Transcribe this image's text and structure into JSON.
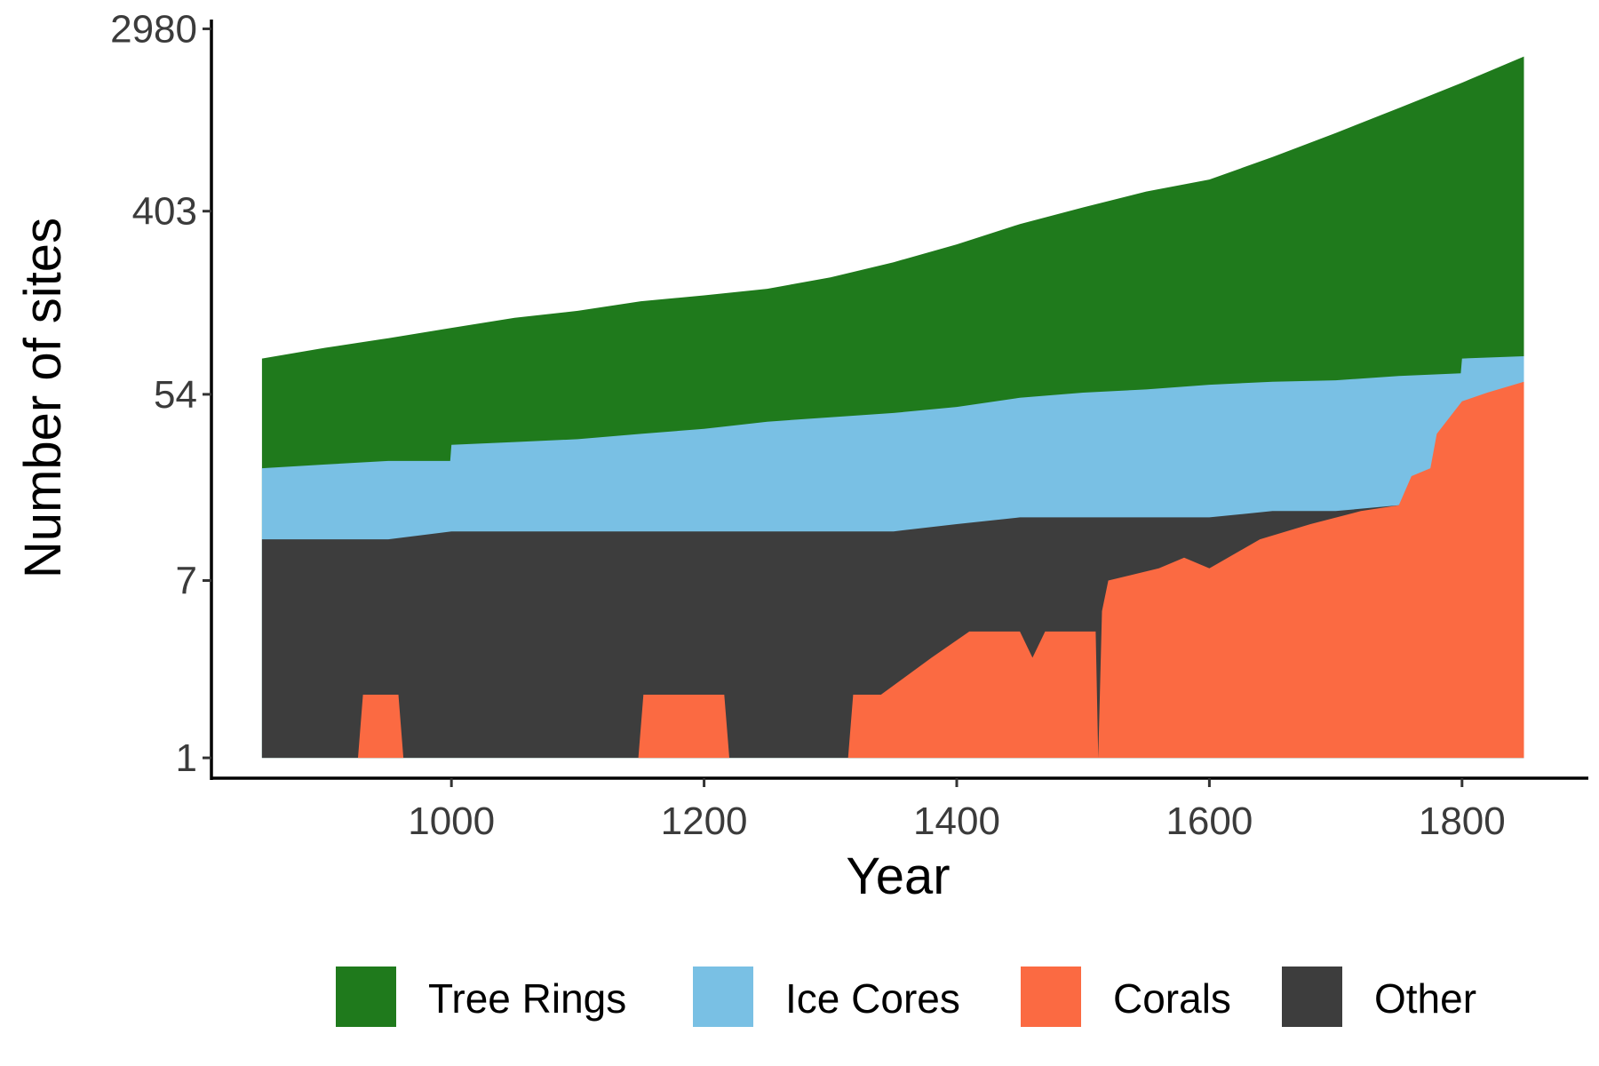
{
  "chart_data": {
    "type": "area",
    "stacked": true,
    "title": "",
    "xlabel": "Year",
    "ylabel": "Number of sites",
    "y_scale": "log",
    "xlim": [
      810,
      1900
    ],
    "ylim": [
      0.8,
      3300
    ],
    "x_ticks": [
      1000,
      1200,
      1400,
      1600,
      1800
    ],
    "y_ticks": [
      1,
      7,
      54,
      403,
      2980
    ],
    "legend_position": "bottom",
    "grid": false,
    "series": [
      {
        "name": "Tree Rings",
        "color": "#1f7a1c",
        "x": [
          850,
          900,
          950,
          1000,
          1050,
          1100,
          1150,
          1200,
          1250,
          1300,
          1350,
          1400,
          1450,
          1500,
          1550,
          1600,
          1650,
          1700,
          1750,
          1800,
          1849
        ],
        "total": [
          80,
          90,
          100,
          112,
          125,
          135,
          150,
          160,
          172,
          195,
          230,
          280,
          350,
          420,
          500,
          570,
          730,
          950,
          1250,
          1650,
          2200
        ]
      },
      {
        "name": "Ice Cores",
        "color": "#79c0e4",
        "x": [
          850,
          900,
          950,
          999,
          1000,
          1050,
          1100,
          1150,
          1200,
          1250,
          1300,
          1350,
          1400,
          1450,
          1500,
          1550,
          1600,
          1650,
          1700,
          1750,
          1799,
          1800,
          1849
        ],
        "total": [
          24,
          25,
          26,
          26,
          31,
          32,
          33,
          35,
          37,
          40,
          42,
          44,
          47,
          52,
          55,
          57,
          60,
          62,
          63,
          66,
          68,
          80,
          82
        ]
      },
      {
        "name": "Other",
        "color": "#3d3d3d",
        "x": [
          850,
          900,
          950,
          1000,
          1050,
          1100,
          1150,
          1200,
          1250,
          1300,
          1350,
          1400,
          1450,
          1500,
          1550,
          1600,
          1650,
          1700,
          1750,
          1800,
          1849
        ],
        "total": [
          11,
          11,
          11,
          12,
          12,
          12,
          12,
          12,
          12,
          12,
          12,
          13,
          14,
          14,
          14,
          14,
          15,
          15,
          16,
          17,
          18
        ]
      },
      {
        "name": "Corals",
        "color": "#fb6a42",
        "x": [
          850,
          926,
          930,
          958,
          962,
          1148,
          1152,
          1216,
          1220,
          1314,
          1318,
          1340,
          1380,
          1410,
          1420,
          1450,
          1460,
          1470,
          1510,
          1512,
          1515,
          1520,
          1560,
          1580,
          1600,
          1640,
          1680,
          1720,
          1750,
          1760,
          1775,
          1780,
          1800,
          1820,
          1849
        ],
        "total": [
          1,
          1,
          2,
          2,
          1,
          1,
          2,
          2,
          1,
          1,
          2,
          2,
          3,
          4,
          4,
          4,
          3,
          4,
          4,
          1,
          5,
          7,
          8,
          9,
          8,
          11,
          13,
          15,
          16,
          22,
          24,
          35,
          50,
          55,
          62
        ]
      }
    ]
  }
}
